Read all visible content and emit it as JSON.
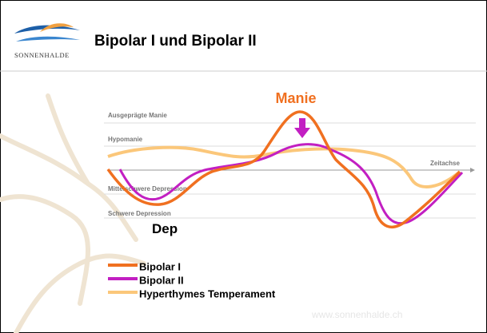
{
  "header": {
    "title": "Bipolar I und Bipolar II",
    "logo_text": "SONNENHALDE"
  },
  "diagram": {
    "levels": [
      "Ausgeprägte Manie",
      "Hypomanie",
      "Mittelschwere Depression",
      "Schwere Depression"
    ],
    "axis_label": "Zeitachse",
    "annotations": {
      "manie": "Manie",
      "dep": "Dep"
    },
    "legend": [
      "Bipolar I",
      "Bipolar II",
      "Hyperthymes Temperament"
    ]
  },
  "footer": {
    "watermark": "www.sonnenhalde.ch"
  }
}
